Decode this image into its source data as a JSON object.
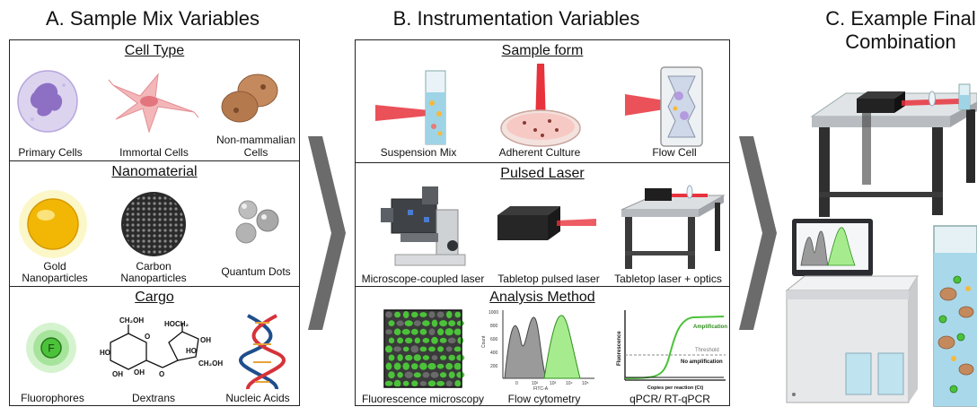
{
  "columns": {
    "a": {
      "title": "A. Sample Mix Variables"
    },
    "b": {
      "title": "B. Instrumentation Variables"
    },
    "c": {
      "title_line1": "C. Example Final",
      "title_line2": "Combination"
    }
  },
  "panel_a": {
    "cell_type": {
      "title": "Cell Type",
      "items": [
        "Primary Cells",
        "Immortal Cells",
        "Non-mammalian",
        "Cells"
      ]
    },
    "nanomaterial": {
      "title": "Nanomaterial",
      "items": [
        "Gold",
        "Nanoparticles",
        "Carbon",
        "Nanoparticles",
        "Quantum Dots"
      ]
    },
    "cargo": {
      "title": "Cargo",
      "items": [
        "Fluorophores",
        "Dextrans",
        "Nucleic Acids"
      ],
      "fluorophore_letter": "F"
    }
  },
  "panel_b": {
    "sample_form": {
      "title": "Sample form",
      "items": [
        "Suspension Mix",
        "Adherent Culture",
        "Flow Cell"
      ]
    },
    "pulsed_laser": {
      "title": "Pulsed Laser",
      "items": [
        "Microscope-coupled laser",
        "Tabletop pulsed laser",
        "Tabletop laser + optics"
      ]
    },
    "analysis": {
      "title": "Analysis Method",
      "items": [
        "Fluorescence microscopy",
        "Flow cytometry",
        "qPCR/ RT-qPCR"
      ],
      "flow_xlabel": "FITC-A",
      "flow_ylabel": "Count",
      "flow_yticks": [
        "1000",
        "800",
        "600",
        "400",
        "200"
      ],
      "flow_xticks": [
        "0",
        "10²",
        "10³",
        "10⁴",
        "10⁵"
      ],
      "qpcr_ylabel": "Fluorescence",
      "qpcr_xlabel": "Copies per reaction (Ct)",
      "qpcr_amp": "Amplification",
      "qpcr_threshold": "Threshold",
      "qpcr_noamp": "No amplification"
    }
  },
  "colors": {
    "green": "#4cc23a",
    "red": "#e8323c",
    "border": "#222222",
    "arrow": "#6b6b6b",
    "gold": "#f2b705"
  }
}
